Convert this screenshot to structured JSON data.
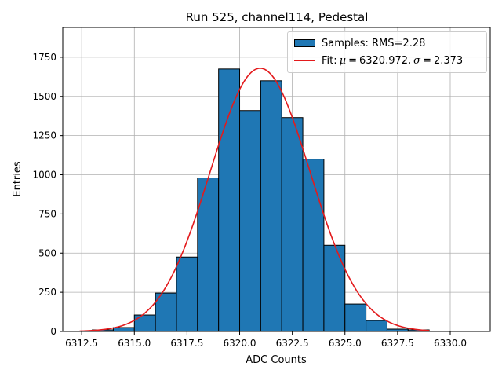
{
  "chart_data": {
    "type": "bar",
    "title": "Run 525, channel114, Pedestal",
    "xlabel": "ADC Counts",
    "ylabel": "Entries",
    "xlim": [
      6311.6,
      6331.9
    ],
    "ylim": [
      0,
      1940
    ],
    "grid": true,
    "xticks": [
      6312.5,
      6315.0,
      6317.5,
      6320.0,
      6322.5,
      6325.0,
      6327.5,
      6330.0
    ],
    "xtick_labels": [
      "6312.5",
      "6315.0",
      "6317.5",
      "6320.0",
      "6322.5",
      "6325.0",
      "6327.5",
      "6330.0"
    ],
    "yticks": [
      0,
      250,
      500,
      750,
      1000,
      1250,
      1500,
      1750
    ],
    "ytick_labels": [
      "0",
      "250",
      "500",
      "750",
      "1000",
      "1250",
      "1500",
      "1750"
    ],
    "histogram": {
      "name": "Samples: RMS=2.28",
      "bin_edges": [
        6313,
        6314,
        6315,
        6316,
        6317,
        6318,
        6319,
        6320,
        6321,
        6322,
        6323,
        6324,
        6325,
        6326,
        6327,
        6328,
        6329
      ],
      "counts": [
        10,
        25,
        105,
        245,
        475,
        980,
        1675,
        1410,
        1600,
        1365,
        1100,
        550,
        175,
        70,
        15,
        10
      ],
      "color": "#1f77b4"
    },
    "fit": {
      "name": "Fit",
      "mu_symbol": "μ",
      "sigma_symbol": "σ",
      "mu": 6320.972,
      "sigma": 2.373,
      "mu_text": "6320.972",
      "sigma_text": "2.373",
      "amplitude": 1680,
      "x_range": [
        6312.4,
        6329.0
      ],
      "color": "#e31a1c"
    },
    "legend": {
      "placement": "top-right",
      "samples_label": "Samples: RMS=2.28",
      "fit_prefix": "Fit:",
      "equals": "=",
      "separator": ","
    }
  }
}
